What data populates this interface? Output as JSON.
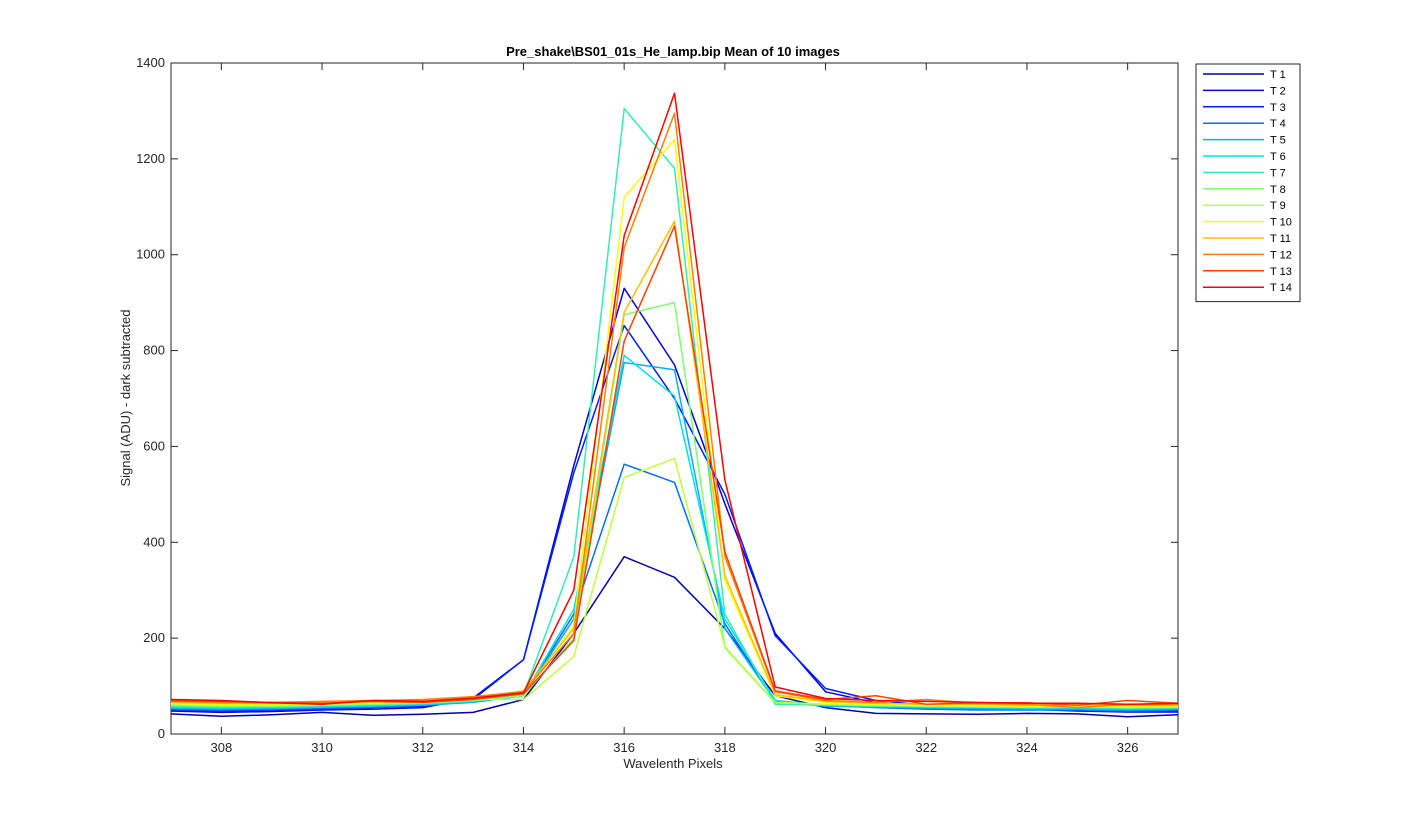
{
  "chart_data": {
    "type": "line",
    "title": "Pre_shake\\BS01_01s_He_lamp.bip  Mean of 10 images",
    "xlabel": "Wavelenth Pixels",
    "ylabel": "Signal (ADU) - dark subtracted",
    "xlim": [
      307,
      327
    ],
    "ylim": [
      0,
      1400
    ],
    "xticks": [
      308,
      310,
      312,
      314,
      316,
      318,
      320,
      322,
      324,
      326
    ],
    "yticks": [
      0,
      200,
      400,
      600,
      800,
      1000,
      1200,
      1400
    ],
    "grid": false,
    "legend_position": "outside-top-right",
    "x": [
      307,
      308,
      309,
      310,
      311,
      312,
      313,
      314,
      315,
      316,
      317,
      318,
      319,
      320,
      321,
      322,
      323,
      324,
      325,
      326,
      327
    ],
    "series": [
      {
        "name": "T 1",
        "color": "#0000af",
        "values": [
          42,
          37,
          40,
          45,
          39,
          41,
          45,
          72,
          210,
          370,
          327,
          220,
          80,
          55,
          43,
          42,
          41,
          43,
          42,
          36,
          40
        ]
      },
      {
        "name": "T 2",
        "color": "#0000df",
        "values": [
          48,
          45,
          47,
          50,
          52,
          55,
          75,
          155,
          560,
          930,
          770,
          480,
          210,
          88,
          65,
          58,
          52,
          52,
          48,
          46,
          46
        ]
      },
      {
        "name": "T 3",
        "color": "#0020ff",
        "values": [
          50,
          48,
          50,
          52,
          55,
          58,
          72,
          155,
          545,
          852,
          700,
          500,
          205,
          95,
          70,
          60,
          55,
          55,
          50,
          48,
          48
        ]
      },
      {
        "name": "T 4",
        "color": "#0070ff",
        "values": [
          52,
          50,
          52,
          54,
          56,
          60,
          68,
          80,
          250,
          563,
          525,
          230,
          68,
          60,
          55,
          52,
          50,
          50,
          50,
          48,
          50
        ]
      },
      {
        "name": "T 5",
        "color": "#00b0ff",
        "values": [
          54,
          52,
          53,
          56,
          58,
          60,
          66,
          80,
          240,
          775,
          760,
          220,
          68,
          58,
          56,
          54,
          53,
          52,
          52,
          50,
          52
        ]
      },
      {
        "name": "T 6",
        "color": "#00e0f0",
        "values": [
          56,
          54,
          55,
          57,
          59,
          62,
          68,
          80,
          260,
          790,
          705,
          240,
          70,
          60,
          58,
          56,
          55,
          54,
          54,
          52,
          54
        ]
      },
      {
        "name": "T 7",
        "color": "#30f0b0",
        "values": [
          58,
          56,
          57,
          59,
          61,
          64,
          70,
          82,
          370,
          1305,
          1180,
          250,
          62,
          60,
          58,
          57,
          56,
          55,
          56,
          54,
          55
        ]
      },
      {
        "name": "T 8",
        "color": "#80ff70",
        "values": [
          60,
          58,
          58,
          60,
          62,
          64,
          70,
          80,
          200,
          875,
          900,
          180,
          65,
          62,
          60,
          58,
          57,
          56,
          57,
          55,
          56
        ]
      },
      {
        "name": "T 9",
        "color": "#c0ff40",
        "values": [
          62,
          60,
          60,
          62,
          64,
          66,
          72,
          72,
          162,
          535,
          575,
          182,
          66,
          62,
          60,
          59,
          58,
          57,
          58,
          56,
          57
        ]
      },
      {
        "name": "T 10",
        "color": "#ffff00",
        "values": [
          64,
          62,
          62,
          64,
          66,
          68,
          74,
          85,
          225,
          1120,
          1240,
          320,
          80,
          66,
          62,
          60,
          60,
          58,
          60,
          58,
          58
        ]
      },
      {
        "name": "T 11",
        "color": "#ffc000",
        "values": [
          66,
          64,
          64,
          66,
          68,
          70,
          76,
          90,
          220,
          880,
          1070,
          330,
          82,
          68,
          64,
          62,
          62,
          60,
          62,
          60,
          60
        ]
      },
      {
        "name": "T 12",
        "color": "#ff8000",
        "values": [
          68,
          66,
          66,
          68,
          70,
          72,
          78,
          88,
          210,
          1015,
          1295,
          370,
          88,
          70,
          66,
          72,
          64,
          62,
          55,
          62,
          62
        ]
      },
      {
        "name": "T 13",
        "color": "#ff4000",
        "values": [
          70,
          68,
          66,
          64,
          68,
          66,
          72,
          84,
          195,
          820,
          1060,
          380,
          90,
          72,
          80,
          62,
          65,
          65,
          60,
          70,
          64
        ]
      },
      {
        "name": "T 14",
        "color": "#ff0000",
        "values": [
          72,
          70,
          65,
          62,
          70,
          68,
          75,
          86,
          300,
          1040,
          1337,
          530,
          98,
          74,
          70,
          68,
          66,
          64,
          64,
          62,
          64
        ]
      }
    ]
  }
}
